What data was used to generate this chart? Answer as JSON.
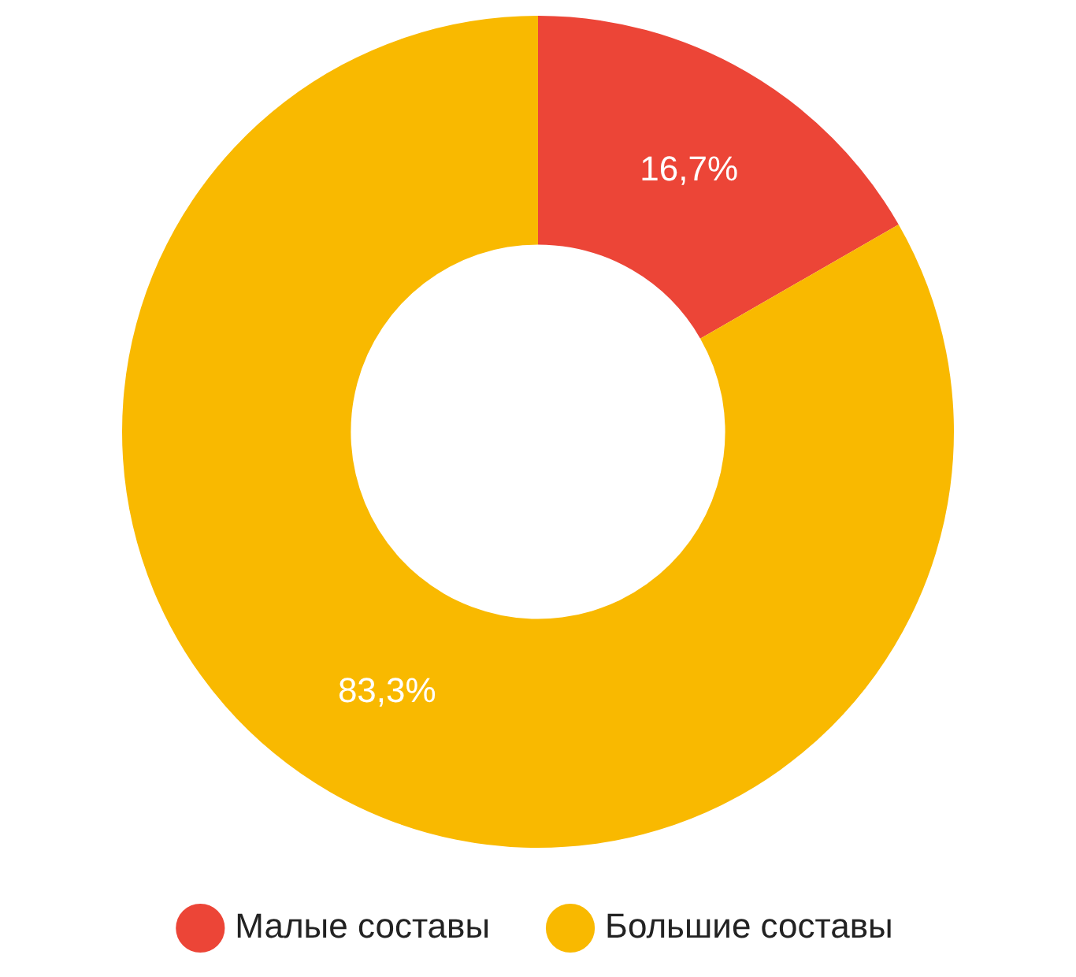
{
  "chart_data": {
    "type": "donut",
    "categories": [
      "Малые составы",
      "Большие составы"
    ],
    "values": [
      16.7,
      83.3
    ],
    "colors": [
      "#ec4537",
      "#f9b900"
    ],
    "value_labels": [
      "16,7%",
      "83,3%"
    ],
    "legend": "bottom"
  }
}
